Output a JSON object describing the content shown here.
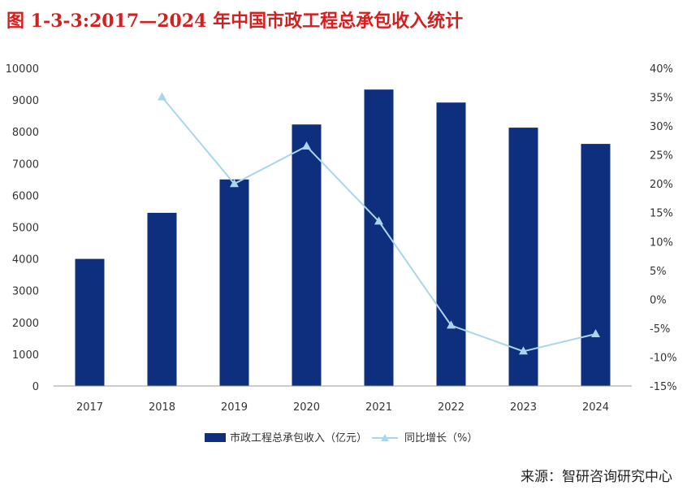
{
  "title": "图 1-3-3:2017—2024 年中国市政工程总承包收入统计",
  "source": "来源：智研咨询研究中心",
  "chart_data": {
    "type": "bar",
    "title": "图 1-3-3:2017—2024 年中国市政工程总承包收入统计",
    "categories": [
      "2017",
      "2018",
      "2019",
      "2020",
      "2021",
      "2022",
      "2023",
      "2024"
    ],
    "series": [
      {
        "name": "市政工程总承包收入（亿元）",
        "type": "bar",
        "axis": "left",
        "color": "#0d2f7e",
        "values": [
          4000,
          5450,
          6500,
          8230,
          9330,
          8920,
          8130,
          7620
        ]
      },
      {
        "name": "同比增长（%）",
        "type": "line",
        "axis": "right",
        "color": "#a9d6ea",
        "marker": "triangle",
        "values": [
          null,
          35.0,
          20.0,
          26.5,
          13.5,
          -4.5,
          -9.0,
          -6.0
        ]
      }
    ],
    "y_left": {
      "min": 0,
      "max": 10000,
      "ticks": [
        "0",
        "1000",
        "2000",
        "3000",
        "4000",
        "5000",
        "6000",
        "7000",
        "8000",
        "9000",
        "10000"
      ]
    },
    "y_right": {
      "min": -15,
      "max": 40,
      "ticks": [
        "-15%",
        "-10%",
        "-5%",
        "0%",
        "5%",
        "10%",
        "15%",
        "20%",
        "25%",
        "30%",
        "35%",
        "40%"
      ]
    },
    "grid": false,
    "legend": "bottom"
  }
}
